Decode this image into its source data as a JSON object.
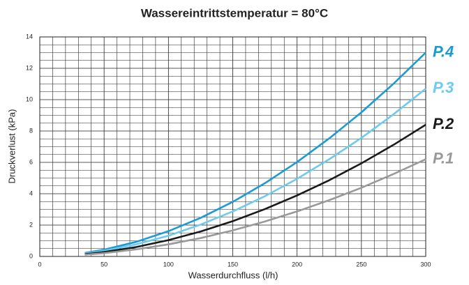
{
  "chart_data": {
    "type": "line",
    "title": "Wassereintrittstemperatur = 80°C",
    "xlabel": "Wasserdurchfluss (l/h)",
    "ylabel": "Druckverlust (kPa)",
    "x": [
      35,
      50,
      75,
      100,
      125,
      150,
      175,
      200,
      225,
      250,
      275,
      300
    ],
    "series": [
      {
        "name": "P.4",
        "color": "#1a9ad6",
        "values": [
          0.22,
          0.43,
          0.93,
          1.61,
          2.46,
          3.48,
          4.67,
          6.02,
          7.53,
          9.19,
          11.02,
          13
        ]
      },
      {
        "name": "P.3",
        "color": "#6ccbf0",
        "values": [
          0.18,
          0.36,
          0.77,
          1.32,
          2.03,
          2.87,
          3.84,
          4.95,
          6.2,
          7.56,
          9.07,
          10.7
        ]
      },
      {
        "name": "P.2",
        "color": "#1a1a1a",
        "values": [
          0.14,
          0.28,
          0.6,
          1.04,
          1.59,
          2.25,
          3.02,
          3.89,
          4.86,
          5.94,
          7.12,
          8.4
        ]
      },
      {
        "name": "P.1",
        "color": "#999999",
        "values": [
          0.11,
          0.21,
          0.45,
          0.77,
          1.17,
          1.66,
          2.23,
          2.87,
          3.59,
          4.38,
          5.26,
          6.2
        ]
      }
    ],
    "xlim": [
      0,
      300
    ],
    "xticks": [
      0,
      50,
      100,
      150,
      200,
      250,
      300
    ],
    "ylim": [
      0,
      14
    ],
    "yticks": [
      0,
      2,
      4,
      6,
      8,
      10,
      12,
      14
    ],
    "grid": true
  }
}
